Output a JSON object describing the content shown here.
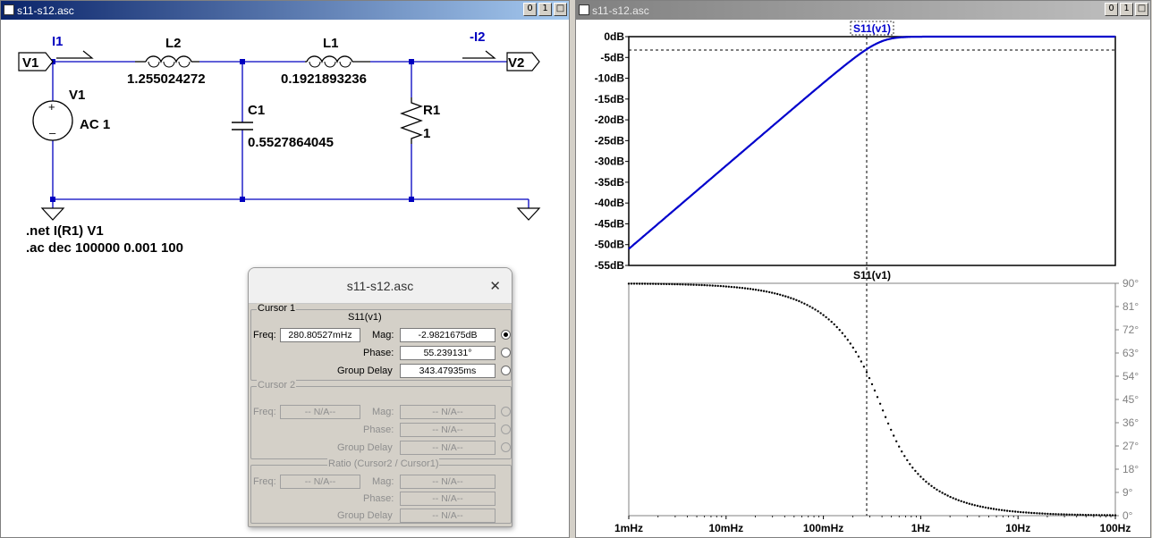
{
  "schematic": {
    "title": "s11-s12.asc",
    "labels": {
      "i1": "I1",
      "neg_i2": "-I2",
      "v1_port": "V1",
      "v2_port": "V2",
      "l2_name": "L2",
      "l2_value": "1.255024272",
      "l1_name": "L1",
      "l1_value": "0.1921893236",
      "c1_name": "C1",
      "c1_value": "0.5527864045",
      "r1_name": "R1",
      "r1_value": "1",
      "v1_name": "V1",
      "v1_value": "AC 1",
      "directive_net": ".net I(R1) V1",
      "directive_ac": ".ac dec 100000 0.001 100"
    }
  },
  "waveform": {
    "title": "s11-s12.asc",
    "trace_label_top": "S11(v1)",
    "trace_label_bottom": "S11(v1)",
    "mag_ticks": [
      "0dB",
      "-5dB",
      "-10dB",
      "-15dB",
      "-20dB",
      "-25dB",
      "-30dB",
      "-35dB",
      "-40dB",
      "-45dB",
      "-50dB",
      "-55dB"
    ],
    "phase_ticks": [
      "90°",
      "81°",
      "72°",
      "63°",
      "54°",
      "45°",
      "36°",
      "27°",
      "18°",
      "9°",
      "0°"
    ],
    "freq_ticks": [
      "1mHz",
      "10mHz",
      "100mHz",
      "1Hz",
      "10Hz",
      "100Hz"
    ]
  },
  "window_buttons": {
    "minimize": "0",
    "restore": "1"
  },
  "colors": {
    "wire": "#0000c0",
    "trace": "#0000cc",
    "titlebar_active": "#0a246a"
  },
  "cursor_dialog": {
    "title": "s11-s12.asc",
    "cursor1": {
      "legend": "Cursor 1",
      "trace": "S11(v1)",
      "freq_label": "Freq:",
      "freq": "280.80527mHz",
      "mag_label": "Mag:",
      "mag": "-2.9821675dB",
      "phase_label": "Phase:",
      "phase": "55.239131°",
      "gd_label": "Group Delay",
      "group_delay": "343.47935ms"
    },
    "cursor2": {
      "legend": "Cursor 2",
      "freq_label": "Freq:",
      "freq": "-- N/A--",
      "mag_label": "Mag:",
      "mag": "-- N/A--",
      "phase_label": "Phase:",
      "phase": "-- N/A--",
      "gd_label": "Group Delay",
      "group_delay": "-- N/A--"
    },
    "ratio": {
      "legend": "Ratio (Cursor2 / Cursor1)",
      "freq_label": "Freq:",
      "freq": "-- N/A--",
      "mag_label": "Mag:",
      "mag": "-- N/A--",
      "phase_label": "Phase:",
      "phase": "-- N/A--",
      "gd_label": "Group Delay",
      "group_delay": "-- N/A--"
    }
  }
}
